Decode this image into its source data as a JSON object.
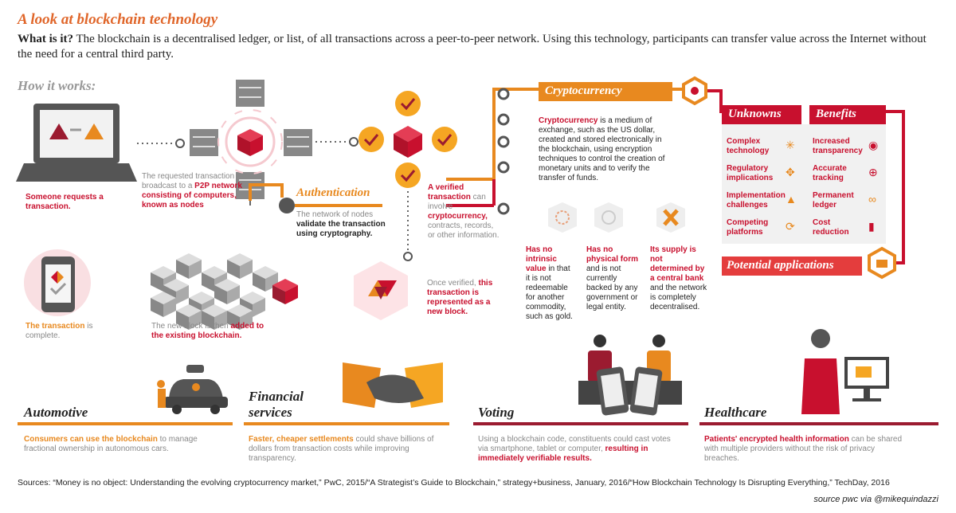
{
  "title": "A look at blockchain technology",
  "intro": {
    "lead": "What is it?",
    "text": " The blockchain is a decentralised ledger, or list, of all transactions across a peer-to-peer network. Using this technology, participants can transfer value across the Internet without the need for a central third party."
  },
  "how_it_works": "How it works:",
  "steps": {
    "request": "Someone requests a transaction.",
    "broadcast_a": "The requested transaction is broadcast to a ",
    "broadcast_b": "P2P network consisting of computers, known as nodes",
    "auth_title": "Authentication",
    "auth_a": "The network of nodes ",
    "auth_b": "validate the transaction using cryptography.",
    "verified_a": "A verified transaction",
    "verified_b": " can involve ",
    "verified_c": "cryptocurrency,",
    "verified_d": " contracts, records, or other information.",
    "block_a": "Once verified, ",
    "block_b": "this transaction is represented as a new block.",
    "chain_a": "The new block is then ",
    "chain_b": "added to the existing blockchain.",
    "complete_a": "The transaction",
    "complete_b": " is complete."
  },
  "crypto": {
    "title": "Cryptocurrency",
    "term": "Cryptocurrency",
    "desc": " is a medium of exchange, such as the US dollar, created and stored electronically in the blockchain, using encryption techniques to control the creation of monetary units and to verify the transfer of funds.",
    "p1a": "Has no intrinsic value",
    "p1b": " in that it is not redeemable for another commodity, such as gold.",
    "p2a": "Has no physical form",
    "p2b": " and is not currently backed by any government or legal entity.",
    "p3a": "Its supply is not determined by a central bank",
    "p3b": " and the network is completely decentralised."
  },
  "unknowns": {
    "title": "Unknowns",
    "items": [
      "Complex technology",
      "Regulatory implications",
      "Implementation challenges",
      "Competing platforms"
    ]
  },
  "benefits": {
    "title": "Benefits",
    "items": [
      "Increased transparency",
      "Accurate tracking",
      "Permanent ledger",
      "Cost reduction"
    ]
  },
  "potential": "Potential applications",
  "sectors": {
    "automotive": {
      "title": "Automotive",
      "hl": "Consumers can use the blockchain",
      "text": " to manage fractional ownership in autonomous cars."
    },
    "financial": {
      "title1": "Financial",
      "title2": "services",
      "hl": "Faster, cheaper settlements",
      "text": " could shave billions of dollars from transaction costs while improving transparency."
    },
    "voting": {
      "title": "Voting",
      "text": "Using a blockchain code, constituents could cast votes via smartphone, tablet or computer, ",
      "hl": "resulting in immediately verifiable results."
    },
    "healthcare": {
      "title": "Healthcare",
      "hl": "Patients' encrypted health information",
      "text": " can be shared with multiple providers without the risk of privacy breaches."
    }
  },
  "sources": "Sources: “Money is no object: Understanding the evolving cryptocurrency market,” PwC, 2015/“A Strategist’s Guide to Blockchain,” strategy+business, January, 2016/“How Blockchain Technology Is Disrupting Everything,” TechDay, 2016",
  "credit": "source pwc via @mikequindazzi",
  "colors": {
    "orange": "#e8891f",
    "red": "#c8102e",
    "grey": "#888888",
    "pink": "#f5c9cf"
  }
}
